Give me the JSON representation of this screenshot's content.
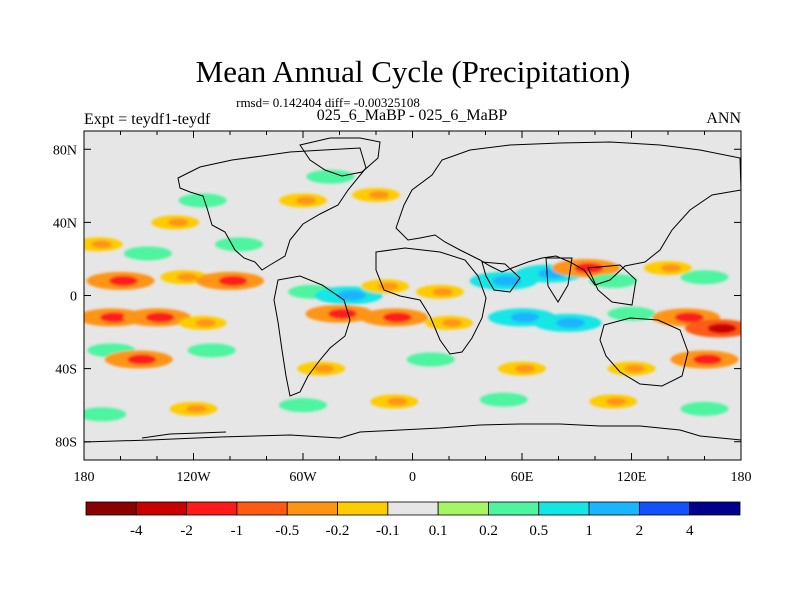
{
  "chart_data": {
    "type": "heatmap",
    "title": "Mean Annual Cycle (Precipitation)",
    "stats_line": "rmsd= 0.142404 diff= -0.00325108",
    "left_label": "Expt = teydf1-teydf",
    "center_label": "025_6_MaBP - 025_6_MaBP",
    "right_label": "ANN",
    "x_range": [
      -180,
      180
    ],
    "y_range": [
      -90,
      90
    ],
    "x_ticks": [
      {
        "value": -180,
        "label": "180"
      },
      {
        "value": -120,
        "label": "120W"
      },
      {
        "value": -60,
        "label": "60W"
      },
      {
        "value": 0,
        "label": "0"
      },
      {
        "value": 60,
        "label": "60E"
      },
      {
        "value": 120,
        "label": "120E"
      },
      {
        "value": 180,
        "label": "180"
      }
    ],
    "y_ticks": [
      {
        "value": 80,
        "label": "80N"
      },
      {
        "value": 40,
        "label": "40N"
      },
      {
        "value": 0,
        "label": "0"
      },
      {
        "value": -40,
        "label": "40S"
      },
      {
        "value": -80,
        "label": "80S"
      }
    ],
    "colorbar": {
      "colors": [
        "#8b0000",
        "#c80000",
        "#ff1a1a",
        "#ff5a14",
        "#ff9414",
        "#ffcc00",
        "#e6e6e6",
        "#a6f564",
        "#4df5a0",
        "#14e6e6",
        "#1ab4ff",
        "#1450ff",
        "#00008c"
      ],
      "labels": [
        "-4",
        "-2",
        "-1",
        "-0.5",
        "-0.2",
        "-0.1",
        "0.1",
        "0.2",
        "0.5",
        "1",
        "2",
        "4"
      ]
    },
    "blobs": [
      {
        "lon": -172,
        "lat": 28,
        "value": -0.2
      },
      {
        "lon": -145,
        "lat": 23,
        "value": 0.2
      },
      {
        "lon": -130,
        "lat": 40,
        "value": -0.2
      },
      {
        "lon": -115,
        "lat": 52,
        "value": 0.2
      },
      {
        "lon": -95,
        "lat": 28,
        "value": 0.2
      },
      {
        "lon": -60,
        "lat": 52,
        "value": -0.2
      },
      {
        "lon": -45,
        "lat": 65,
        "value": 0.2
      },
      {
        "lon": -20,
        "lat": 55,
        "value": -0.2
      },
      {
        "lon": -160,
        "lat": 8,
        "value": -0.5
      },
      {
        "lon": -125,
        "lat": 10,
        "value": -0.2
      },
      {
        "lon": -100,
        "lat": 8,
        "value": -0.5
      },
      {
        "lon": -55,
        "lat": 2,
        "value": 0.2
      },
      {
        "lon": -35,
        "lat": 0,
        "value": 0.5
      },
      {
        "lon": -15,
        "lat": 5,
        "value": -0.2
      },
      {
        "lon": 15,
        "lat": 2,
        "value": -0.2
      },
      {
        "lon": 50,
        "lat": 8,
        "value": 0.5
      },
      {
        "lon": 75,
        "lat": 12,
        "value": 0.5
      },
      {
        "lon": 95,
        "lat": 15,
        "value": -0.5
      },
      {
        "lon": 110,
        "lat": 8,
        "value": 0.2
      },
      {
        "lon": 140,
        "lat": 15,
        "value": -0.2
      },
      {
        "lon": 160,
        "lat": 10,
        "value": 0.2
      },
      {
        "lon": -165,
        "lat": -12,
        "value": -0.5
      },
      {
        "lon": -140,
        "lat": -12,
        "value": -0.5
      },
      {
        "lon": -115,
        "lat": -15,
        "value": -0.2
      },
      {
        "lon": -40,
        "lat": -10,
        "value": -0.5
      },
      {
        "lon": -10,
        "lat": -12,
        "value": -0.5
      },
      {
        "lon": 20,
        "lat": -15,
        "value": -0.2
      },
      {
        "lon": 60,
        "lat": -12,
        "value": 0.5
      },
      {
        "lon": 85,
        "lat": -15,
        "value": 0.5
      },
      {
        "lon": 120,
        "lat": -10,
        "value": 0.2
      },
      {
        "lon": 150,
        "lat": -12,
        "value": -0.5
      },
      {
        "lon": 168,
        "lat": -18,
        "value": -1
      },
      {
        "lon": -165,
        "lat": -30,
        "value": 0.2
      },
      {
        "lon": -150,
        "lat": -35,
        "value": -0.5
      },
      {
        "lon": -110,
        "lat": -30,
        "value": 0.2
      },
      {
        "lon": -50,
        "lat": -40,
        "value": -0.2
      },
      {
        "lon": 10,
        "lat": -35,
        "value": 0.2
      },
      {
        "lon": 60,
        "lat": -40,
        "value": -0.2
      },
      {
        "lon": 120,
        "lat": -40,
        "value": -0.2
      },
      {
        "lon": 160,
        "lat": -35,
        "value": -0.5
      },
      {
        "lon": -170,
        "lat": -65,
        "value": 0.2
      },
      {
        "lon": -120,
        "lat": -62,
        "value": -0.2
      },
      {
        "lon": -60,
        "lat": -60,
        "value": 0.2
      },
      {
        "lon": -10,
        "lat": -58,
        "value": -0.2
      },
      {
        "lon": 50,
        "lat": -57,
        "value": 0.2
      },
      {
        "lon": 110,
        "lat": -58,
        "value": -0.2
      },
      {
        "lon": 160,
        "lat": -62,
        "value": 0.2
      }
    ]
  }
}
